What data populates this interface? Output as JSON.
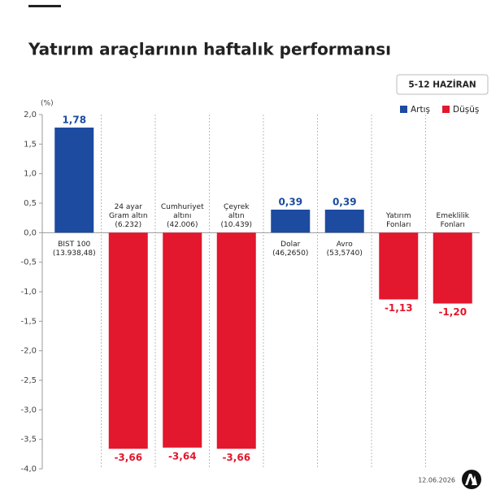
{
  "chart_data": {
    "type": "bar",
    "title": "Yatırım araçlarının haftalık performansı",
    "period": "5-12 HAZİRAN",
    "unit": "(%)",
    "date": "12.06.2026",
    "legend": [
      {
        "name": "Artış",
        "color": "#1c4ba0"
      },
      {
        "name": "Düşüş",
        "color": "#e3172d"
      }
    ],
    "categories": [
      [
        "BIST 100"
      ],
      [
        "24 ayar",
        "Gram altın"
      ],
      [
        "Cumhuriyet",
        "altını"
      ],
      [
        "Çeyrek",
        "altın"
      ],
      [
        "Dolar"
      ],
      [
        "Avro"
      ],
      [
        "Yatırım",
        "Fonları"
      ],
      [
        "Emeklilik",
        "Fonları"
      ]
    ],
    "category_notes": [
      "(13.938,48)",
      "(6.232)",
      "(42.006)",
      "(10.439)",
      "(46,2650)",
      "(53,5740)",
      null,
      null
    ],
    "values": [
      1.78,
      -3.66,
      -3.64,
      -3.66,
      0.39,
      0.39,
      -1.13,
      -1.2
    ],
    "value_labels": [
      "1,78",
      "-3,66",
      "-3,64",
      "-3,66",
      "0,39",
      "0,39",
      "-1,13",
      "-1,20"
    ],
    "ylim": [
      -4,
      2
    ],
    "yticks": [
      {
        "value": 2,
        "label": "2,0"
      },
      {
        "value": 1.5,
        "label": "1,5"
      },
      {
        "value": 1,
        "label": "1,0"
      },
      {
        "value": 0.5,
        "label": "0,5"
      },
      {
        "value": 0,
        "label": "0,0"
      },
      {
        "value": -0.5,
        "label": "-0,5"
      },
      {
        "value": -1,
        "label": "-1,0"
      },
      {
        "value": -1.5,
        "label": "-1,5"
      },
      {
        "value": -2,
        "label": "-2,0"
      },
      {
        "value": -2.5,
        "label": "-2,5"
      },
      {
        "value": -3,
        "label": "-3,0"
      },
      {
        "value": -3.5,
        "label": "-3,5"
      },
      {
        "value": -4,
        "label": "-4,0"
      }
    ]
  }
}
